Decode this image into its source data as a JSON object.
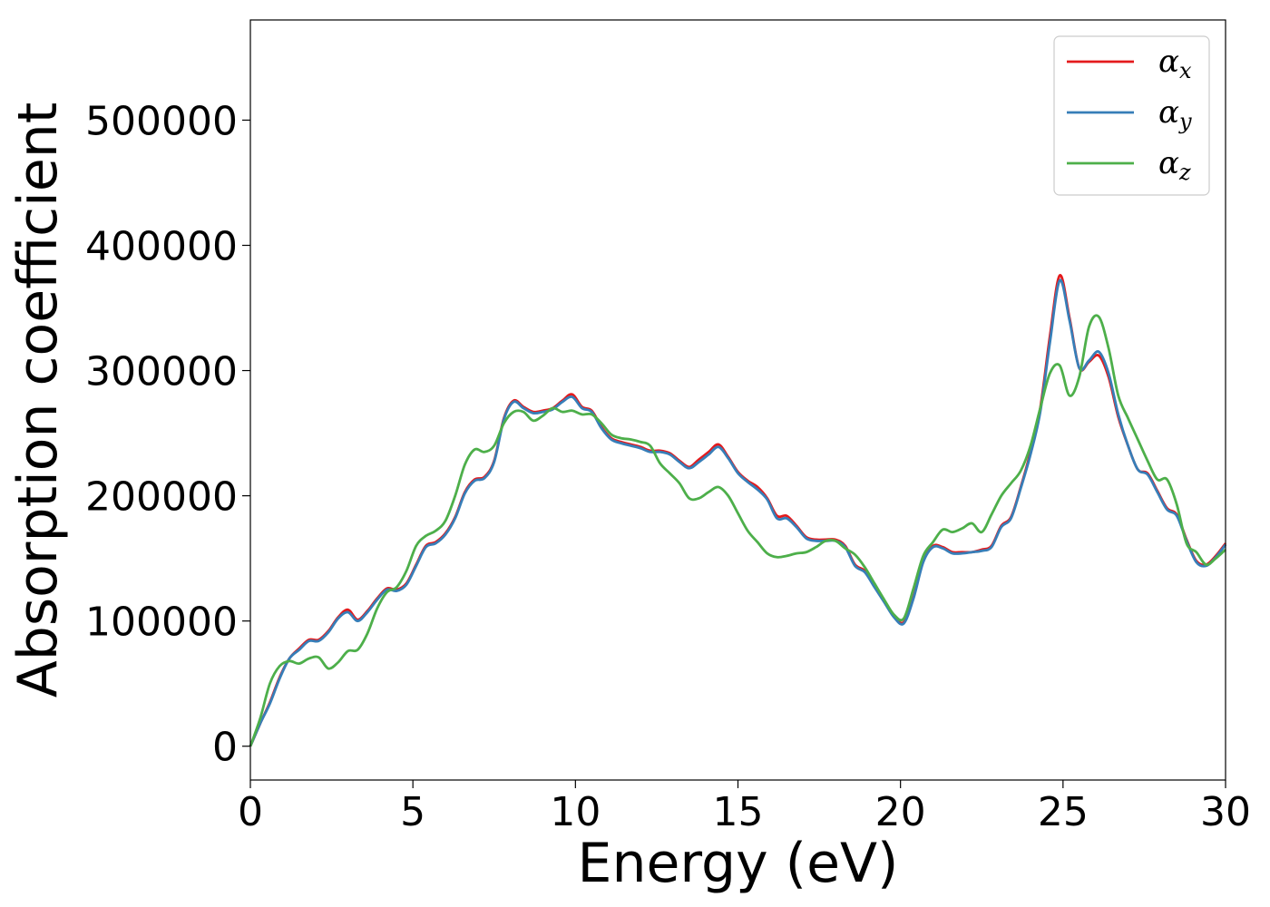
{
  "chart_data": {
    "type": "line",
    "title": "",
    "xlabel": "Energy (eV)",
    "ylabel": "Absorption coefficient",
    "xlim": [
      0,
      30
    ],
    "ylim": [
      -27000,
      580000
    ],
    "xticks": [
      0,
      5,
      10,
      15,
      20,
      25,
      30
    ],
    "yticks": [
      0,
      100000,
      200000,
      300000,
      400000,
      500000
    ],
    "grid": false,
    "legend_position": "top-right",
    "series": [
      {
        "name": "αx",
        "symbol": "α",
        "subscript": "x",
        "color": "#e41a1c",
        "x": [
          0,
          0.3,
          0.6,
          0.9,
          1.2,
          1.5,
          1.8,
          2.1,
          2.4,
          2.7,
          3.0,
          3.3,
          3.6,
          3.9,
          4.2,
          4.5,
          4.8,
          5.1,
          5.4,
          5.7,
          6.0,
          6.3,
          6.6,
          6.9,
          7.2,
          7.5,
          7.8,
          8.1,
          8.4,
          8.7,
          9.0,
          9.3,
          9.6,
          9.9,
          10.2,
          10.5,
          10.8,
          11.1,
          11.4,
          11.7,
          12.0,
          12.3,
          12.6,
          12.9,
          13.2,
          13.5,
          13.8,
          14.1,
          14.4,
          14.7,
          15.0,
          15.3,
          15.6,
          15.9,
          16.2,
          16.5,
          16.8,
          17.1,
          17.4,
          17.7,
          18.0,
          18.3,
          18.6,
          18.9,
          19.2,
          19.5,
          19.8,
          20.1,
          20.4,
          20.7,
          21.0,
          21.3,
          21.6,
          21.9,
          22.2,
          22.5,
          22.8,
          23.1,
          23.4,
          23.7,
          24.0,
          24.3,
          24.6,
          24.9,
          25.2,
          25.5,
          25.8,
          26.1,
          26.4,
          26.7,
          27.0,
          27.3,
          27.6,
          27.9,
          28.2,
          28.5,
          28.8,
          29.1,
          29.4,
          29.7,
          30.0
        ],
        "values": [
          0,
          18000,
          35000,
          55000,
          70000,
          78000,
          85000,
          85000,
          92000,
          103000,
          109000,
          101000,
          108000,
          118000,
          126000,
          125000,
          130000,
          145000,
          160000,
          163000,
          170000,
          183000,
          203000,
          213000,
          215000,
          228000,
          262000,
          276000,
          271000,
          267000,
          268000,
          270000,
          276000,
          281000,
          271000,
          268000,
          255000,
          246000,
          243000,
          241000,
          239000,
          236000,
          236000,
          234000,
          228000,
          223000,
          229000,
          235000,
          241000,
          231000,
          219000,
          212000,
          207000,
          198000,
          184000,
          184000,
          176000,
          167000,
          165000,
          165000,
          165000,
          160000,
          145000,
          140000,
          128000,
          116000,
          104000,
          99000,
          119000,
          148000,
          160000,
          159000,
          155000,
          155000,
          155000,
          157000,
          160000,
          176000,
          183000,
          207000,
          235000,
          270000,
          328000,
          376000,
          342000,
          302000,
          307000,
          312000,
          295000,
          263000,
          240000,
          221000,
          218000,
          204000,
          190000,
          185000,
          165000,
          148000,
          145000,
          152000,
          162000
        ]
      },
      {
        "name": "αy",
        "symbol": "α",
        "subscript": "y",
        "color": "#377eb8",
        "x": [
          0,
          0.3,
          0.6,
          0.9,
          1.2,
          1.5,
          1.8,
          2.1,
          2.4,
          2.7,
          3.0,
          3.3,
          3.6,
          3.9,
          4.2,
          4.5,
          4.8,
          5.1,
          5.4,
          5.7,
          6.0,
          6.3,
          6.6,
          6.9,
          7.2,
          7.5,
          7.8,
          8.1,
          8.4,
          8.7,
          9.0,
          9.3,
          9.6,
          9.9,
          10.2,
          10.5,
          10.8,
          11.1,
          11.4,
          11.7,
          12.0,
          12.3,
          12.6,
          12.9,
          13.2,
          13.5,
          13.8,
          14.1,
          14.4,
          14.7,
          15.0,
          15.3,
          15.6,
          15.9,
          16.2,
          16.5,
          16.8,
          17.1,
          17.4,
          17.7,
          18.0,
          18.3,
          18.6,
          18.9,
          19.2,
          19.5,
          19.8,
          20.1,
          20.4,
          20.7,
          21.0,
          21.3,
          21.6,
          21.9,
          22.2,
          22.5,
          22.8,
          23.1,
          23.4,
          23.7,
          24.0,
          24.3,
          24.6,
          24.9,
          25.2,
          25.5,
          25.8,
          26.1,
          26.4,
          26.7,
          27.0,
          27.3,
          27.6,
          27.9,
          28.2,
          28.5,
          28.8,
          29.1,
          29.4,
          29.7,
          30.0
        ],
        "values": [
          0,
          18000,
          34000,
          54000,
          70000,
          77000,
          84000,
          84000,
          91000,
          102000,
          107000,
          100000,
          107000,
          117000,
          125000,
          124000,
          129000,
          144000,
          159000,
          162000,
          169000,
          182000,
          202000,
          212000,
          214000,
          227000,
          261000,
          275000,
          270000,
          266000,
          267000,
          269000,
          275000,
          279000,
          270000,
          267000,
          254000,
          245000,
          242000,
          240000,
          238000,
          235000,
          235000,
          233000,
          227000,
          222000,
          227000,
          233000,
          239000,
          230000,
          218000,
          211000,
          205000,
          197000,
          182000,
          182000,
          175000,
          166000,
          164000,
          164000,
          164000,
          159000,
          144000,
          139000,
          127000,
          115000,
          103000,
          98000,
          118000,
          147000,
          159000,
          158000,
          154000,
          154000,
          155000,
          156000,
          159000,
          175000,
          182000,
          206000,
          233000,
          267000,
          323000,
          372000,
          340000,
          302000,
          308000,
          315000,
          298000,
          265000,
          240000,
          221000,
          217000,
          203000,
          189000,
          184000,
          164000,
          147000,
          144000,
          151000,
          161000
        ]
      },
      {
        "name": "αz",
        "symbol": "α",
        "subscript": "z",
        "color": "#4daf4a",
        "x": [
          0,
          0.3,
          0.6,
          0.9,
          1.2,
          1.5,
          1.8,
          2.1,
          2.4,
          2.7,
          3.0,
          3.3,
          3.6,
          3.9,
          4.2,
          4.5,
          4.8,
          5.1,
          5.4,
          5.7,
          6.0,
          6.3,
          6.6,
          6.9,
          7.2,
          7.5,
          7.8,
          8.1,
          8.4,
          8.7,
          9.0,
          9.3,
          9.6,
          9.9,
          10.2,
          10.5,
          10.8,
          11.1,
          11.4,
          11.7,
          12.0,
          12.3,
          12.6,
          12.9,
          13.2,
          13.5,
          13.8,
          14.1,
          14.4,
          14.7,
          15.0,
          15.3,
          15.6,
          15.9,
          16.2,
          16.5,
          16.8,
          17.1,
          17.4,
          17.7,
          18.0,
          18.3,
          18.6,
          18.9,
          19.2,
          19.5,
          19.8,
          20.1,
          20.4,
          20.7,
          21.0,
          21.3,
          21.6,
          21.9,
          22.2,
          22.5,
          22.8,
          23.1,
          23.4,
          23.7,
          24.0,
          24.3,
          24.6,
          24.9,
          25.2,
          25.5,
          25.8,
          26.1,
          26.4,
          26.7,
          27.0,
          27.3,
          27.6,
          27.9,
          28.2,
          28.5,
          28.8,
          29.1,
          29.4,
          29.7,
          30.0
        ],
        "values": [
          0,
          22000,
          50000,
          64000,
          68000,
          66000,
          70000,
          71000,
          62000,
          67000,
          76000,
          77000,
          90000,
          110000,
          123000,
          127000,
          140000,
          160000,
          168000,
          172000,
          180000,
          200000,
          225000,
          237000,
          235000,
          240000,
          258000,
          267000,
          267000,
          260000,
          264000,
          270000,
          267000,
          268000,
          265000,
          265000,
          258000,
          249000,
          246000,
          245000,
          243000,
          240000,
          226000,
          218000,
          210000,
          198000,
          198000,
          203000,
          207000,
          200000,
          186000,
          172000,
          163000,
          154000,
          151000,
          152000,
          154000,
          155000,
          159000,
          164000,
          164000,
          158000,
          153000,
          143000,
          130000,
          117000,
          105000,
          102000,
          126000,
          152000,
          163000,
          173000,
          171000,
          174000,
          178000,
          171000,
          185000,
          200000,
          210000,
          220000,
          240000,
          270000,
          298000,
          304000,
          280000,
          295000,
          335000,
          343000,
          318000,
          280000,
          262000,
          245000,
          228000,
          213000,
          213000,
          193000,
          162000,
          155000,
          145000,
          150000,
          157000
        ]
      }
    ]
  }
}
